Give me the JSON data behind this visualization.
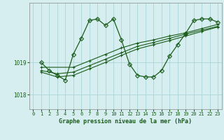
{
  "background_color": "#d6eef0",
  "grid_color": "#aad4d8",
  "line_color": "#1a5c1a",
  "marker_color": "#1a5c1a",
  "xlabel": "Graphe pression niveau de la mer (hPa)",
  "xlim": [
    -0.5,
    23.5
  ],
  "ylim": [
    1017.55,
    1020.85
  ],
  "yticks": [
    1018,
    1019
  ],
  "xticks": [
    0,
    1,
    2,
    3,
    4,
    5,
    6,
    7,
    8,
    9,
    10,
    11,
    12,
    13,
    14,
    15,
    16,
    17,
    18,
    19,
    20,
    21,
    22,
    23
  ],
  "series": [
    {
      "x": [
        1,
        2,
        3,
        4,
        5,
        6,
        7,
        8,
        9,
        10,
        11,
        12,
        13,
        14,
        15,
        16,
        17,
        18,
        19,
        20,
        21,
        22,
        23
      ],
      "y": [
        1019.0,
        1018.75,
        1018.6,
        1018.45,
        1019.25,
        1019.75,
        1020.3,
        1020.35,
        1020.15,
        1020.35,
        1019.7,
        1018.95,
        1018.6,
        1018.55,
        1018.55,
        1018.75,
        1019.2,
        1019.55,
        1019.9,
        1020.3,
        1020.35,
        1020.35,
        1020.25
      ],
      "marker": "D",
      "markersize": 3
    },
    {
      "x": [
        1,
        5,
        7,
        9,
        11,
        13,
        15,
        17,
        19,
        21,
        23
      ],
      "y": [
        1018.85,
        1018.85,
        1019.05,
        1019.25,
        1019.45,
        1019.6,
        1019.7,
        1019.82,
        1019.92,
        1020.05,
        1020.18
      ],
      "marker": "+",
      "markersize": 3
    },
    {
      "x": [
        1,
        3,
        5,
        7,
        9,
        11,
        13,
        15,
        17,
        19,
        21,
        23
      ],
      "y": [
        1018.75,
        1018.65,
        1018.7,
        1018.9,
        1019.1,
        1019.3,
        1019.5,
        1019.62,
        1019.75,
        1019.88,
        1020.0,
        1020.12
      ],
      "marker": "+",
      "markersize": 3
    },
    {
      "x": [
        1,
        3,
        5,
        7,
        9,
        11,
        13,
        15,
        17,
        19,
        21,
        23
      ],
      "y": [
        1018.7,
        1018.55,
        1018.6,
        1018.8,
        1019.0,
        1019.22,
        1019.42,
        1019.55,
        1019.68,
        1019.82,
        1019.96,
        1020.1
      ],
      "marker": "+",
      "markersize": 3
    }
  ]
}
